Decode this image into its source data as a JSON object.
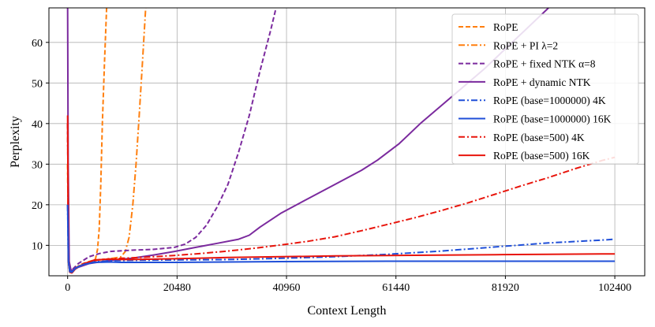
{
  "chart_data": {
    "type": "line",
    "xlabel": "Context Length",
    "ylabel": "Perplexity",
    "xlim": [
      -3500,
      108000
    ],
    "ylim": [
      2.5,
      68.5
    ],
    "xticks": [
      0,
      20480,
      40960,
      61440,
      81920,
      102400
    ],
    "xtick_labels": [
      "0",
      "20480",
      "40960",
      "61440",
      "81920",
      "102400"
    ],
    "yticks": [
      10,
      20,
      30,
      40,
      50,
      60
    ],
    "ytick_labels": [
      "10",
      "20",
      "30",
      "40",
      "50",
      "60"
    ],
    "grid": true,
    "legend_position": "upper right",
    "series": [
      {
        "name": "RoPE",
        "color": "#ff7f0e",
        "dash": "dashed",
        "points": [
          [
            0,
            30
          ],
          [
            150,
            8
          ],
          [
            400,
            4
          ],
          [
            800,
            3.5
          ],
          [
            1500,
            4.5
          ],
          [
            2500,
            5.3
          ],
          [
            3500,
            5.8
          ],
          [
            4500,
            6.2
          ],
          [
            5200,
            6.6
          ],
          [
            5600,
            9
          ],
          [
            5900,
            14
          ],
          [
            6200,
            25
          ],
          [
            6500,
            40
          ],
          [
            6900,
            55
          ],
          [
            7300,
            68.5
          ]
        ]
      },
      {
        "name": "RoPE + PI λ=2",
        "color": "#ff7f0e",
        "dash": "dashdot",
        "points": [
          [
            0,
            30
          ],
          [
            150,
            8
          ],
          [
            400,
            4
          ],
          [
            800,
            3.5
          ],
          [
            1500,
            4.5
          ],
          [
            3000,
            5.5
          ],
          [
            5000,
            6.2
          ],
          [
            7000,
            6.6
          ],
          [
            9000,
            6.9
          ],
          [
            10000,
            7.2
          ],
          [
            10800,
            8.5
          ],
          [
            11500,
            12
          ],
          [
            12200,
            20
          ],
          [
            12800,
            30
          ],
          [
            13400,
            42
          ],
          [
            14000,
            55
          ],
          [
            14600,
            68.5
          ]
        ]
      },
      {
        "name": "RoPE + fixed NTK α=8",
        "color": "#7b2a9e",
        "dash": "dashed",
        "points": [
          [
            0,
            40
          ],
          [
            150,
            8
          ],
          [
            400,
            4
          ],
          [
            1000,
            4.2
          ],
          [
            2000,
            5.5
          ],
          [
            4000,
            7.2
          ],
          [
            6000,
            8
          ],
          [
            8000,
            8.5
          ],
          [
            12000,
            8.8
          ],
          [
            16000,
            9
          ],
          [
            20000,
            9.5
          ],
          [
            22000,
            10.3
          ],
          [
            24000,
            12
          ],
          [
            26000,
            15
          ],
          [
            28000,
            19.5
          ],
          [
            30000,
            25
          ],
          [
            32000,
            33
          ],
          [
            34000,
            42
          ],
          [
            36000,
            53
          ],
          [
            38000,
            63
          ],
          [
            39000,
            68.5
          ]
        ]
      },
      {
        "name": "RoPE + dynamic NTK",
        "color": "#7b2a9e",
        "dash": "solid",
        "points": [
          [
            0,
            68.5
          ],
          [
            100,
            30
          ],
          [
            300,
            6
          ],
          [
            600,
            4
          ],
          [
            1000,
            3.8
          ],
          [
            2000,
            4.6
          ],
          [
            4000,
            5.5
          ],
          [
            8000,
            6.3
          ],
          [
            12000,
            6.8
          ],
          [
            16000,
            7.6
          ],
          [
            20000,
            8.5
          ],
          [
            24000,
            9.5
          ],
          [
            28000,
            10.5
          ],
          [
            32000,
            11.5
          ],
          [
            34000,
            12.5
          ],
          [
            36000,
            14.5
          ],
          [
            40000,
            18
          ],
          [
            45000,
            21.5
          ],
          [
            50000,
            25
          ],
          [
            55000,
            28.5
          ],
          [
            58000,
            31
          ],
          [
            62000,
            35
          ],
          [
            66000,
            40
          ],
          [
            70000,
            44.5
          ],
          [
            74000,
            49
          ],
          [
            78000,
            53.5
          ],
          [
            82000,
            58.5
          ],
          [
            86000,
            63.5
          ],
          [
            90000,
            68.5
          ]
        ]
      },
      {
        "name": "RoPE (base=1000000) 4K",
        "color": "#1f4fd8",
        "dash": "dashdot",
        "points": [
          [
            0,
            20
          ],
          [
            150,
            6
          ],
          [
            400,
            3.8
          ],
          [
            800,
            3.5
          ],
          [
            2000,
            4.8
          ],
          [
            4000,
            5.8
          ],
          [
            8000,
            6.2
          ],
          [
            12000,
            6.3
          ],
          [
            20000,
            6.4
          ],
          [
            30000,
            6.5
          ],
          [
            40000,
            6.8
          ],
          [
            50000,
            7.2
          ],
          [
            60000,
            7.8
          ],
          [
            70000,
            8.6
          ],
          [
            80000,
            9.6
          ],
          [
            90000,
            10.6
          ],
          [
            100000,
            11.3
          ],
          [
            102400,
            11.5
          ]
        ]
      },
      {
        "name": "RoPE (base=1000000) 16K",
        "color": "#1f4fd8",
        "dash": "solid",
        "points": [
          [
            0,
            20
          ],
          [
            150,
            6
          ],
          [
            400,
            3.5
          ],
          [
            800,
            3.4
          ],
          [
            1500,
            4.4
          ],
          [
            3000,
            5.3
          ],
          [
            5000,
            5.8
          ],
          [
            8000,
            5.9
          ],
          [
            10000,
            5.8
          ],
          [
            20000,
            5.8
          ],
          [
            40000,
            6
          ],
          [
            60000,
            6.1
          ],
          [
            80000,
            6.1
          ],
          [
            102400,
            6.1
          ]
        ]
      },
      {
        "name": "RoPE (base=500) 4K",
        "color": "#e8150c",
        "dash": "dashdot",
        "points": [
          [
            0,
            40
          ],
          [
            150,
            6
          ],
          [
            400,
            3.4
          ],
          [
            800,
            3.2
          ],
          [
            1500,
            4.3
          ],
          [
            3000,
            5.5
          ],
          [
            6000,
            6.5
          ],
          [
            10000,
            6.8
          ],
          [
            15000,
            7.1
          ],
          [
            20000,
            7.5
          ],
          [
            25000,
            8
          ],
          [
            30000,
            8.6
          ],
          [
            35000,
            9.3
          ],
          [
            40000,
            10.1
          ],
          [
            45000,
            11
          ],
          [
            50000,
            12.1
          ],
          [
            55000,
            13.6
          ],
          [
            60000,
            15.2
          ],
          [
            65000,
            16.8
          ],
          [
            70000,
            18.6
          ],
          [
            75000,
            20.5
          ],
          [
            80000,
            22.6
          ],
          [
            85000,
            24.7
          ],
          [
            90000,
            26.7
          ],
          [
            95000,
            28.9
          ],
          [
            100000,
            30.9
          ],
          [
            102400,
            31.7
          ]
        ]
      },
      {
        "name": "RoPE (base=500) 16K",
        "color": "#e8150c",
        "dash": "solid",
        "points": [
          [
            0,
            42
          ],
          [
            150,
            6
          ],
          [
            400,
            3.4
          ],
          [
            800,
            3.2
          ],
          [
            1500,
            4.3
          ],
          [
            3000,
            5.4
          ],
          [
            5000,
            6.4
          ],
          [
            8000,
            6.6
          ],
          [
            10000,
            6.5
          ],
          [
            12000,
            6.5
          ],
          [
            20000,
            6.7
          ],
          [
            30000,
            7
          ],
          [
            40000,
            7.2
          ],
          [
            50000,
            7.4
          ],
          [
            60000,
            7.5
          ],
          [
            70000,
            7.6
          ],
          [
            80000,
            7.7
          ],
          [
            90000,
            7.8
          ],
          [
            102400,
            7.9
          ]
        ]
      }
    ]
  }
}
